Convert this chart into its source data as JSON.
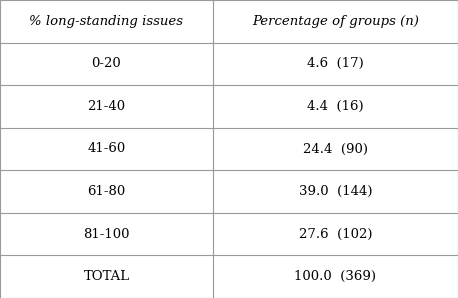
{
  "col1_header": "% long-standing issues",
  "col2_header": "Percentage of groups (n)",
  "rows": [
    [
      "0-20",
      "4.6  (17)"
    ],
    [
      "21-40",
      "4.4  (16)"
    ],
    [
      "41-60",
      "24.4  (90)"
    ],
    [
      "61-80",
      "39.0  (144)"
    ],
    [
      "81-100",
      "27.6  (102)"
    ],
    [
      "TOTAL",
      "100.0  (369)"
    ]
  ],
  "background_color": "#ffffff",
  "line_color": "#999999",
  "text_color": "#000000",
  "header_fontsize": 9.5,
  "cell_fontsize": 9.5,
  "fig_width": 4.58,
  "fig_height": 2.98,
  "col_split": 0.465
}
